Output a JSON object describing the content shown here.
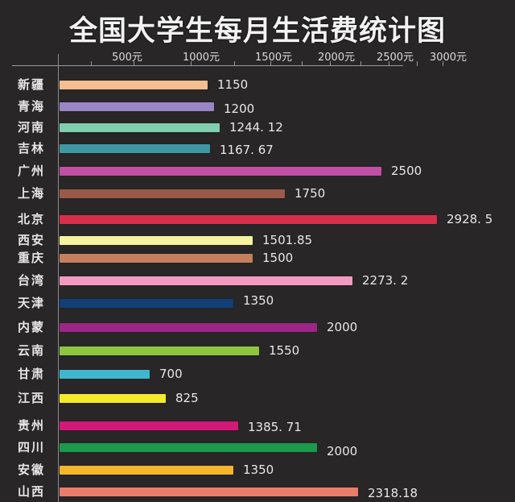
{
  "chart_data": {
    "type": "bar",
    "orientation": "horizontal",
    "title": "全国大学生每月生活费统计图",
    "xlabel": "",
    "ylabel": "",
    "unit": "元",
    "xlim": [
      0,
      3000
    ],
    "grid": false,
    "legend": null,
    "x_ticks": [
      "500元",
      "1000元",
      "1500元",
      "2000元",
      "2500元",
      "3000元"
    ],
    "categories": [
      "新疆",
      "青海",
      "河南",
      "吉林",
      "广州",
      "上海",
      "北京",
      "西安",
      "重庆",
      "台湾",
      "天津",
      "内蒙",
      "云南",
      "甘肃",
      "江西",
      "贵州",
      "四川",
      "安徽",
      "山西"
    ],
    "values": [
      1150,
      1200,
      1244.12,
      1167.67,
      2500,
      1750,
      2928.5,
      1501.85,
      1500,
      2273.2,
      1350,
      2000,
      1550,
      700,
      825,
      1385.71,
      2000,
      1350,
      2318.18
    ],
    "value_labels": [
      "1150",
      "1200",
      "1244. 12",
      "1167. 67",
      "2500",
      "1750",
      "2928. 5",
      "1501.85",
      "1500",
      "2273. 2",
      "1350",
      "2000",
      "1550",
      "700",
      "825",
      "1385. 71",
      "2000",
      "1350",
      "2318.18"
    ],
    "colors": [
      "#f5be8f",
      "#9a86c4",
      "#7fcfaf",
      "#3f97a3",
      "#c04fa5",
      "#9a5a4a",
      "#d72f4a",
      "#f6f3a0",
      "#c47f5c",
      "#f29ac0",
      "#123f78",
      "#9b2686",
      "#8cc63f",
      "#3eb6cf",
      "#f4ea2a",
      "#d4187a",
      "#1a9a4a",
      "#f7b52c",
      "#e97d6a"
    ]
  },
  "tick_labels": {
    "t500": "500元",
    "t1000": "1000元",
    "t1500": "1500元",
    "t2000": "2000元",
    "t2500": "2500元",
    "t3000": "3000元"
  },
  "title": "全国大学生每月生活费统计图"
}
